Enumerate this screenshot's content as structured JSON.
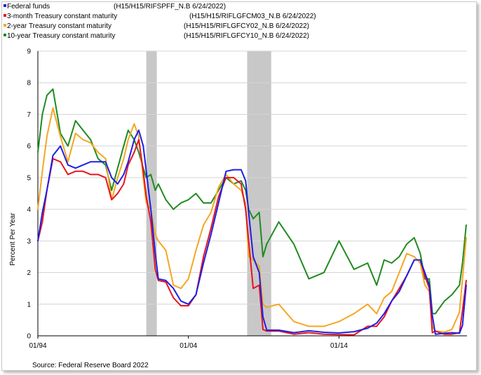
{
  "chart_data": {
    "type": "line",
    "ylabel": "Percent Per Year",
    "source": "Source: Federal Reserve Board 2022",
    "ylim": [
      0,
      9
    ],
    "yticks": [
      0,
      1,
      2,
      3,
      4,
      5,
      6,
      7,
      8,
      9
    ],
    "xlim": [
      1994.0,
      2022.5
    ],
    "xticks": [
      {
        "label": "01/94",
        "value": 1994.0
      },
      {
        "label": "01/04",
        "value": 2004.0
      },
      {
        "label": "01/14",
        "value": 2014.0
      }
    ],
    "recessions": [
      [
        2001.2,
        2001.9
      ],
      [
        2007.9,
        2009.5
      ]
    ],
    "grid": "horizontal",
    "legend_position": "top-left",
    "series": [
      {
        "name": "Federal funds",
        "code": "(H15/H15/RIFSPFF_N.B 6/24/2022)",
        "color": "#1f1fe6",
        "x": [
          1994.0,
          1994.3,
          1994.6,
          1995.0,
          1995.5,
          1996.0,
          1996.5,
          1997.0,
          1997.5,
          1998.0,
          1998.5,
          1998.9,
          1999.3,
          1999.7,
          2000.0,
          2000.4,
          2000.7,
          2001.0,
          2001.2,
          2001.5,
          2001.8,
          2002.0,
          2002.5,
          2003.0,
          2003.5,
          2004.0,
          2004.5,
          2005.0,
          2005.5,
          2006.0,
          2006.5,
          2007.0,
          2007.5,
          2007.8,
          2008.0,
          2008.3,
          2008.7,
          2008.95,
          2009.2,
          2010.0,
          2011.0,
          2012.0,
          2013.0,
          2014.0,
          2015.0,
          2015.9,
          2016.5,
          2017.0,
          2017.5,
          2018.0,
          2018.5,
          2019.0,
          2019.4,
          2019.7,
          2020.0,
          2020.2,
          2020.4,
          2021.0,
          2021.5,
          2022.0,
          2022.2,
          2022.45
        ],
        "values": [
          3.0,
          3.9,
          4.6,
          5.7,
          6.0,
          5.4,
          5.3,
          5.4,
          5.5,
          5.5,
          5.5,
          5.0,
          4.8,
          5.1,
          5.5,
          6.2,
          6.5,
          6.0,
          5.2,
          4.0,
          2.6,
          1.8,
          1.75,
          1.5,
          1.1,
          1.0,
          1.3,
          2.3,
          3.2,
          4.2,
          5.2,
          5.25,
          5.25,
          4.9,
          3.9,
          2.5,
          2.0,
          0.6,
          0.18,
          0.18,
          0.1,
          0.16,
          0.11,
          0.09,
          0.13,
          0.24,
          0.4,
          0.7,
          1.1,
          1.4,
          1.9,
          2.4,
          2.4,
          2.0,
          1.6,
          0.65,
          0.05,
          0.08,
          0.1,
          0.08,
          0.33,
          1.6
        ]
      },
      {
        "name": "3-month Treasury constant maturity",
        "code": "(H15/H15/RIFLGFCM03_N.B 6/24/2022)",
        "color": "#e8141e",
        "x": [
          1994.0,
          1994.3,
          1994.6,
          1995.0,
          1995.5,
          1996.0,
          1996.5,
          1997.0,
          1997.5,
          1998.0,
          1998.5,
          1998.9,
          1999.3,
          1999.7,
          2000.0,
          2000.4,
          2000.7,
          2001.0,
          2001.2,
          2001.5,
          2001.8,
          2002.0,
          2002.5,
          2003.0,
          2003.5,
          2004.0,
          2004.5,
          2005.0,
          2005.5,
          2006.0,
          2006.5,
          2007.0,
          2007.5,
          2007.8,
          2008.0,
          2008.3,
          2008.7,
          2008.95,
          2009.2,
          2010.0,
          2011.0,
          2012.0,
          2013.0,
          2014.0,
          2015.0,
          2015.9,
          2016.5,
          2017.0,
          2017.5,
          2018.0,
          2018.5,
          2019.0,
          2019.4,
          2019.7,
          2020.0,
          2020.2,
          2020.4,
          2021.0,
          2021.5,
          2022.0,
          2022.2,
          2022.45
        ],
        "values": [
          3.0,
          3.6,
          4.6,
          5.6,
          5.5,
          5.1,
          5.2,
          5.2,
          5.1,
          5.1,
          5.0,
          4.3,
          4.5,
          4.8,
          5.4,
          5.8,
          6.2,
          5.2,
          4.4,
          3.6,
          2.1,
          1.75,
          1.7,
          1.2,
          0.95,
          0.95,
          1.3,
          2.5,
          3.4,
          4.4,
          5.0,
          5.0,
          4.8,
          4.0,
          3.0,
          1.5,
          1.6,
          0.2,
          0.15,
          0.15,
          0.05,
          0.1,
          0.05,
          0.04,
          0.03,
          0.3,
          0.3,
          0.6,
          1.1,
          1.5,
          1.9,
          2.4,
          2.4,
          1.9,
          1.5,
          0.1,
          0.15,
          0.05,
          0.05,
          0.1,
          0.8,
          1.75
        ]
      },
      {
        "name": "2-year Treasury constant maturity",
        "code": "(H15/H15/RIFLGFCY02_N.B 6/24/2022)",
        "color": "#f5a623",
        "x": [
          1994.0,
          1994.3,
          1994.6,
          1995.0,
          1995.5,
          1996.0,
          1996.5,
          1997.0,
          1997.5,
          1998.0,
          1998.5,
          1998.9,
          1999.3,
          1999.7,
          2000.0,
          2000.4,
          2000.7,
          2001.0,
          2001.2,
          2001.5,
          2001.8,
          2002.0,
          2002.5,
          2003.0,
          2003.5,
          2004.0,
          2004.5,
          2005.0,
          2005.5,
          2006.0,
          2006.5,
          2007.0,
          2007.5,
          2007.8,
          2008.0,
          2008.3,
          2008.7,
          2008.95,
          2009.2,
          2010.0,
          2011.0,
          2012.0,
          2013.0,
          2014.0,
          2015.0,
          2015.9,
          2016.5,
          2017.0,
          2017.5,
          2018.0,
          2018.5,
          2019.0,
          2019.4,
          2019.7,
          2020.0,
          2020.2,
          2020.4,
          2021.0,
          2021.5,
          2022.0,
          2022.2,
          2022.45
        ],
        "values": [
          4.0,
          5.2,
          6.3,
          7.2,
          6.3,
          5.5,
          6.4,
          6.2,
          6.1,
          5.8,
          5.6,
          4.3,
          5.0,
          5.6,
          6.2,
          6.7,
          6.3,
          5.0,
          4.2,
          4.0,
          3.2,
          3.0,
          2.7,
          1.6,
          1.5,
          1.8,
          2.7,
          3.5,
          3.9,
          4.7,
          5.1,
          4.8,
          4.6,
          4.2,
          2.5,
          2.4,
          2.2,
          1.0,
          0.9,
          1.0,
          0.45,
          0.3,
          0.3,
          0.45,
          0.7,
          1.0,
          0.7,
          1.2,
          1.4,
          2.0,
          2.6,
          2.5,
          2.3,
          1.6,
          1.4,
          0.3,
          0.15,
          0.12,
          0.2,
          0.75,
          1.8,
          3.1
        ]
      },
      {
        "name": "10-year Treasury constant maturity",
        "code": "(H15/H15/RIFLGFCY10_N.B 6/24/2022)",
        "color": "#1f8b1f",
        "x": [
          1994.0,
          1994.3,
          1994.6,
          1995.0,
          1995.5,
          1996.0,
          1996.5,
          1997.0,
          1997.5,
          1998.0,
          1998.5,
          1998.9,
          1999.3,
          1999.7,
          2000.0,
          2000.4,
          2000.7,
          2001.0,
          2001.2,
          2001.5,
          2001.8,
          2002.0,
          2002.5,
          2003.0,
          2003.5,
          2004.0,
          2004.5,
          2005.0,
          2005.5,
          2006.0,
          2006.5,
          2007.0,
          2007.5,
          2007.8,
          2008.0,
          2008.3,
          2008.7,
          2008.95,
          2009.2,
          2010.0,
          2011.0,
          2012.0,
          2013.0,
          2014.0,
          2015.0,
          2015.9,
          2016.5,
          2017.0,
          2017.5,
          2018.0,
          2018.5,
          2019.0,
          2019.4,
          2019.7,
          2020.0,
          2020.2,
          2020.4,
          2021.0,
          2021.5,
          2022.0,
          2022.2,
          2022.45
        ],
        "values": [
          5.8,
          7.0,
          7.6,
          7.8,
          6.4,
          6.0,
          6.8,
          6.5,
          6.2,
          5.6,
          5.4,
          4.6,
          5.3,
          6.0,
          6.5,
          6.2,
          5.8,
          5.3,
          5.0,
          5.1,
          4.6,
          4.8,
          4.3,
          4.0,
          4.2,
          4.3,
          4.5,
          4.2,
          4.2,
          4.6,
          5.0,
          4.8,
          4.9,
          4.6,
          4.0,
          3.7,
          3.9,
          2.5,
          2.9,
          3.6,
          2.9,
          1.8,
          2.0,
          3.0,
          2.1,
          2.3,
          1.6,
          2.4,
          2.3,
          2.5,
          2.9,
          3.1,
          2.6,
          1.8,
          1.8,
          0.7,
          0.7,
          1.1,
          1.3,
          1.6,
          2.3,
          3.5
        ]
      }
    ]
  }
}
